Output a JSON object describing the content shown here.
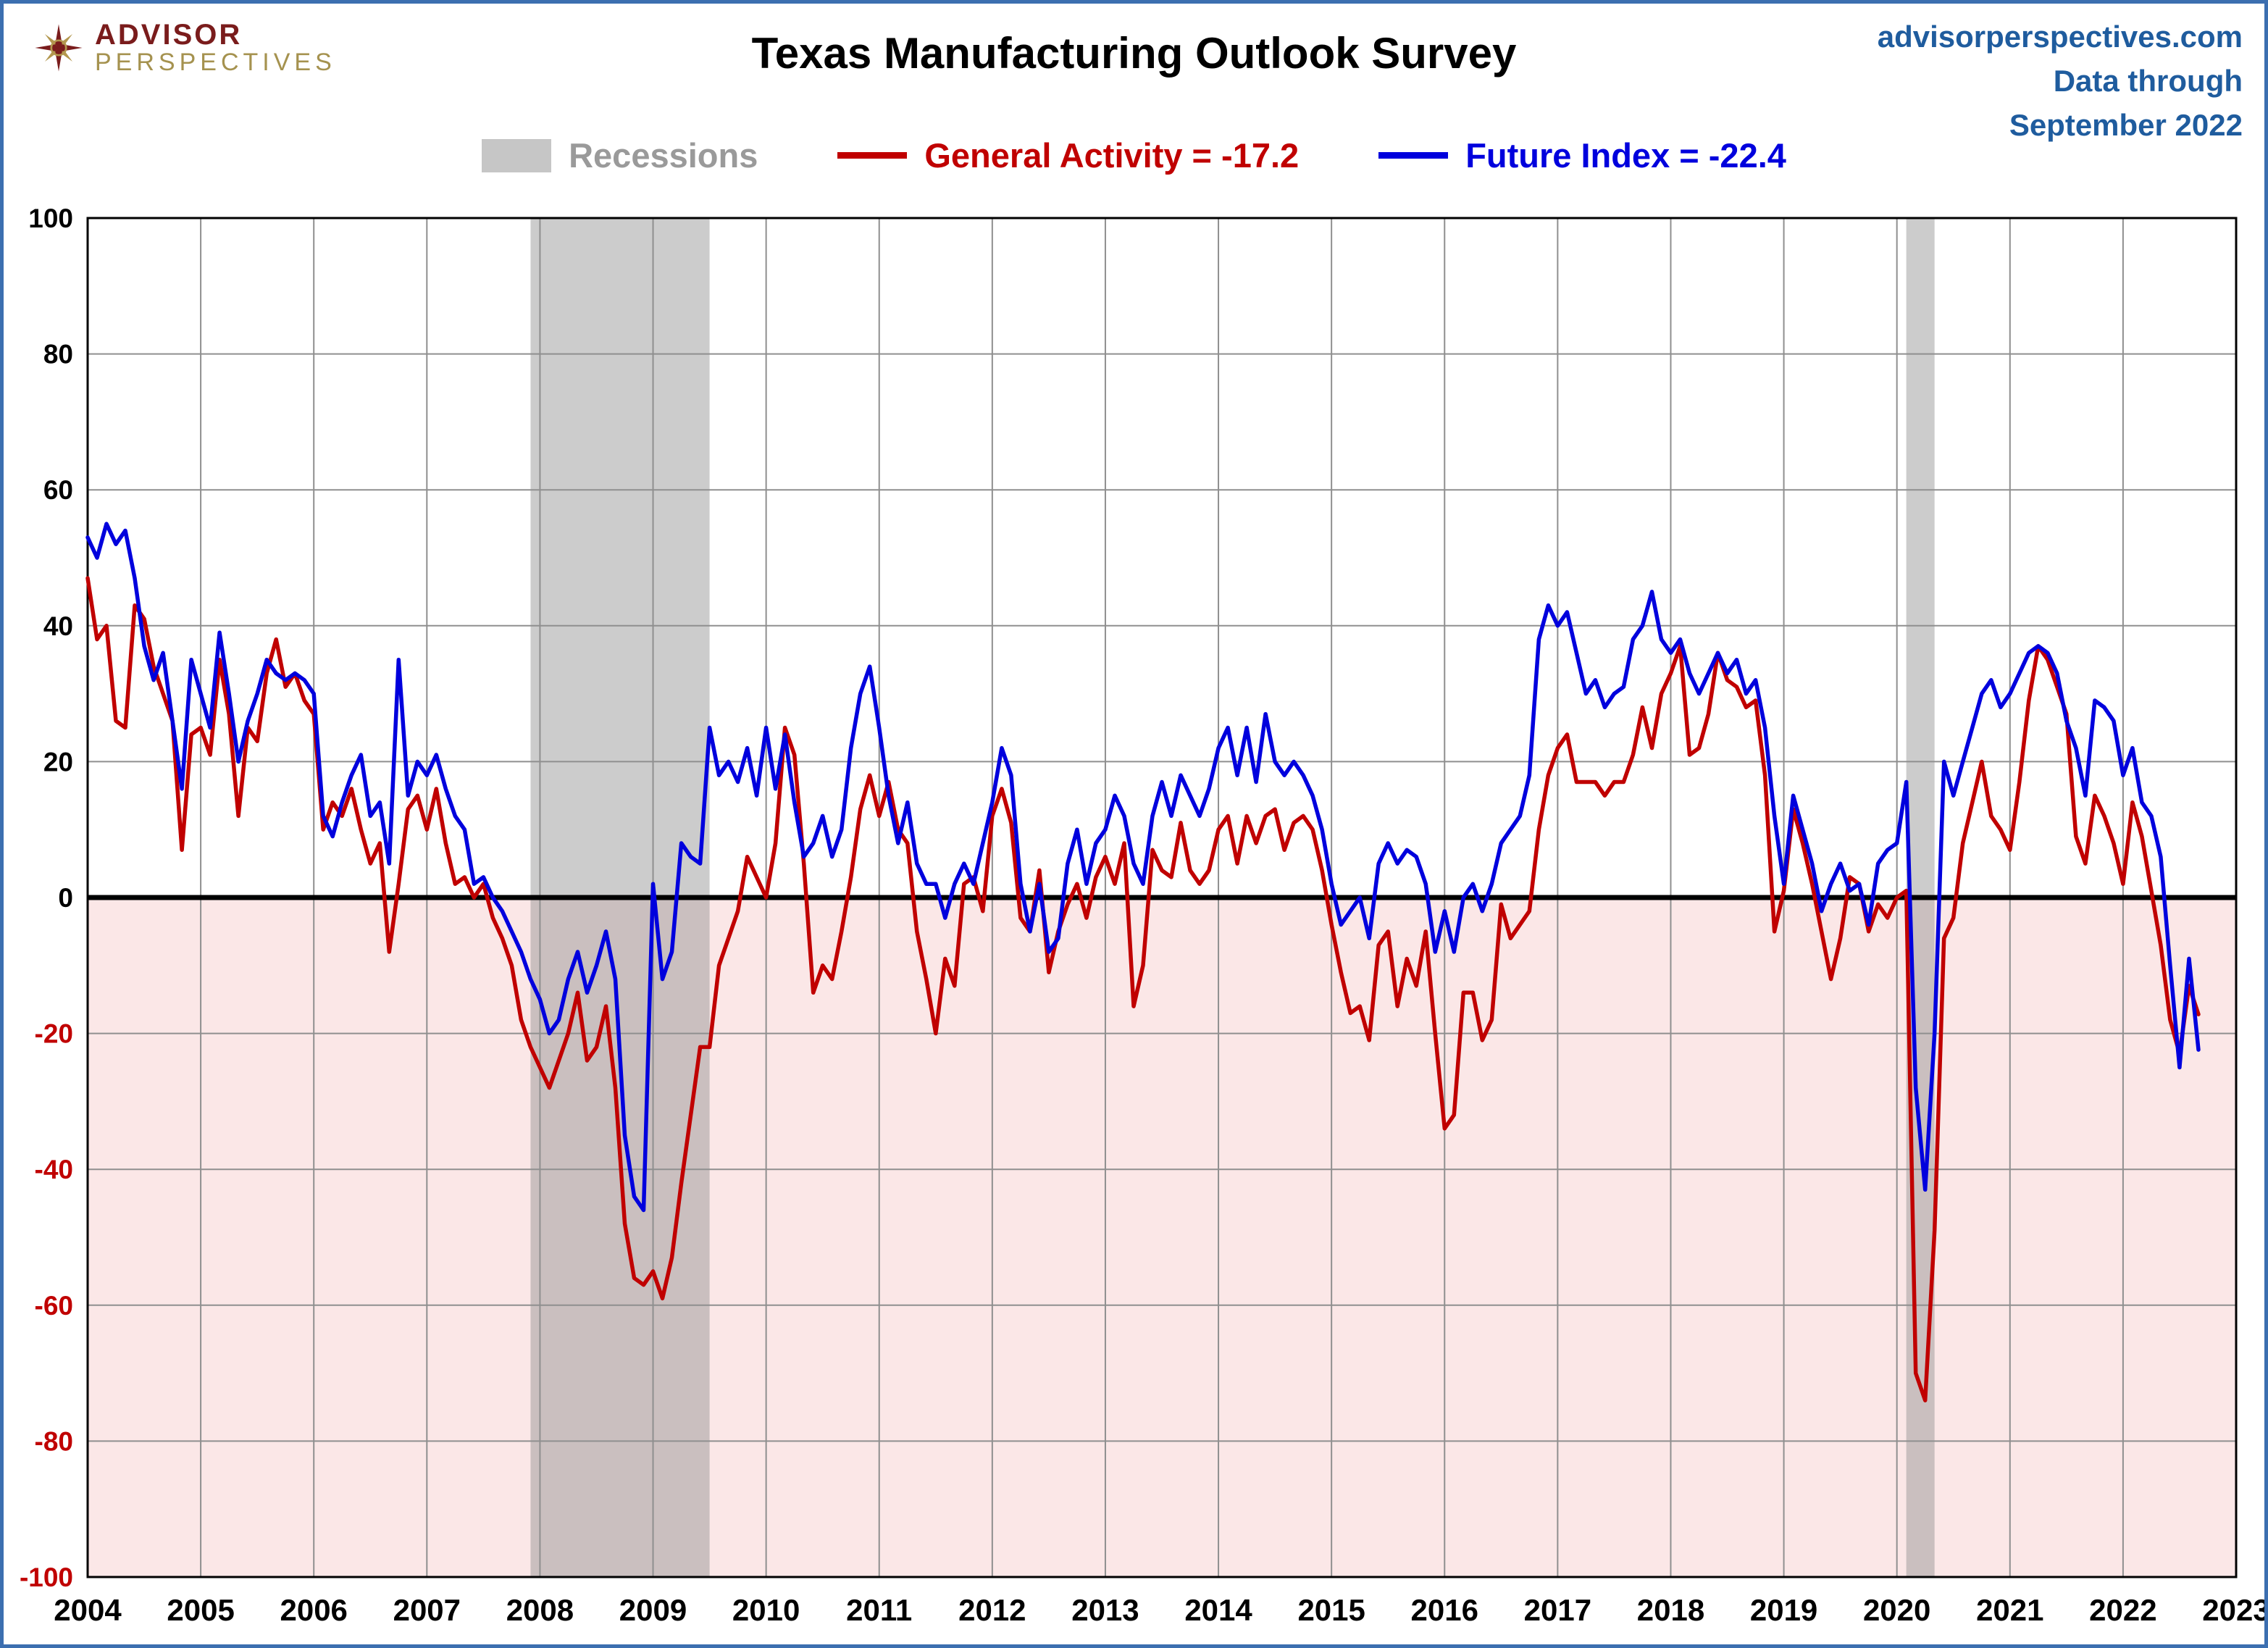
{
  "header": {
    "logo_line1": "ADVISOR",
    "logo_line2": "PERSPECTIVES",
    "title": "Texas Manufacturing Outlook Survey",
    "site": "advisorperspectives.com",
    "data_through_label": "Data through",
    "data_through_date": "September 2022"
  },
  "legend": {
    "recessions_label": "Recessions",
    "general_activity_label": "General Activity = -17.2",
    "future_index_label": "Future Index = -22.4"
  },
  "chart_data": {
    "type": "line",
    "title": "Texas Manufacturing Outlook Survey",
    "frequency": "monthly",
    "x_start": "2004-01",
    "x_end": "2022-09",
    "xlim": [
      2004,
      2023
    ],
    "ylim": [
      -100,
      100
    ],
    "x_ticks": [
      2004,
      2005,
      2006,
      2007,
      2008,
      2009,
      2010,
      2011,
      2012,
      2013,
      2014,
      2015,
      2016,
      2017,
      2018,
      2019,
      2020,
      2021,
      2022,
      2023
    ],
    "y_ticks": [
      100,
      80,
      60,
      40,
      20,
      0,
      -20,
      -40,
      -60,
      -80,
      -100
    ],
    "grid": true,
    "legend_position": "top",
    "recessions": [
      [
        2007.917,
        2009.5
      ],
      [
        2020.083,
        2020.333
      ]
    ],
    "styles": {
      "below_zero_fill": "#fbe7e7",
      "recession_fill": "#8f8f8f",
      "recession_opacity": 0.45,
      "grid_color": "#8f8f8f",
      "zero_line_color": "#000000",
      "negative_tick_color": "#c00000",
      "positive_tick_color": "#000000"
    },
    "series": [
      {
        "name": "General Activity",
        "color": "#c00000",
        "latest": -17.2,
        "values": [
          47,
          38,
          40,
          26,
          25,
          43,
          41,
          34,
          30,
          26,
          7,
          24,
          25,
          21,
          35,
          27,
          12,
          25,
          23,
          33,
          38,
          31,
          33,
          29,
          27,
          10,
          14,
          12,
          16,
          10,
          5,
          8,
          -8,
          2,
          13,
          15,
          10,
          16,
          8,
          2,
          3,
          0,
          2,
          -3,
          -6,
          -10,
          -18,
          -22,
          -25,
          -28,
          -24,
          -20,
          -14,
          -24,
          -22,
          -16,
          -28,
          -48,
          -56,
          -57,
          -55,
          -59,
          -53,
          -42,
          -32,
          -22,
          -22,
          -10,
          -6,
          -2,
          6,
          3,
          0,
          8,
          25,
          21,
          5,
          -14,
          -10,
          -12,
          -5,
          3,
          13,
          18,
          12,
          17,
          10,
          8,
          -5,
          -12,
          -20,
          -9,
          -13,
          2,
          3,
          -2,
          12,
          16,
          11,
          -3,
          -5,
          4,
          -11,
          -5,
          -1,
          2,
          -3,
          3,
          6,
          2,
          8,
          -16,
          -10,
          7,
          4,
          3,
          11,
          4,
          2,
          4,
          10,
          12,
          5,
          12,
          8,
          12,
          13,
          7,
          11,
          12,
          10,
          4,
          -4,
          -11,
          -17,
          -16,
          -21,
          -7,
          -5,
          -16,
          -9,
          -13,
          -5,
          -20,
          -34,
          -32,
          -14,
          -14,
          -21,
          -18,
          -1,
          -6,
          -4,
          -2,
          10,
          18,
          22,
          24,
          17,
          17,
          17,
          15,
          17,
          17,
          21,
          28,
          22,
          30,
          33,
          37,
          21,
          22,
          27,
          36,
          32,
          31,
          28,
          29,
          18,
          -5,
          1,
          13,
          8,
          2,
          -5,
          -12,
          -6,
          3,
          2,
          -5,
          -1,
          -3,
          0,
          1,
          -70,
          -74,
          -49,
          -6,
          -3,
          8,
          14,
          20,
          12,
          10,
          7,
          17,
          29,
          37,
          35,
          31,
          27,
          9,
          5,
          15,
          12,
          8,
          2,
          14,
          9,
          1,
          -7,
          -18,
          -23,
          -13,
          -17.2
        ]
      },
      {
        "name": "Future Index",
        "color": "#0000dd",
        "latest": -22.4,
        "values": [
          53,
          50,
          55,
          52,
          54,
          47,
          37,
          32,
          36,
          26,
          16,
          35,
          30,
          25,
          39,
          30,
          20,
          26,
          30,
          35,
          33,
          32,
          33,
          32,
          30,
          12,
          9,
          14,
          18,
          21,
          12,
          14,
          5,
          35,
          15,
          20,
          18,
          21,
          16,
          12,
          10,
          2,
          3,
          0,
          -2,
          -5,
          -8,
          -12,
          -15,
          -20,
          -18,
          -12,
          -8,
          -14,
          -10,
          -5,
          -12,
          -35,
          -44,
          -46,
          2,
          -12,
          -8,
          8,
          6,
          5,
          25,
          18,
          20,
          17,
          22,
          15,
          25,
          16,
          24,
          14,
          6,
          8,
          12,
          6,
          10,
          22,
          30,
          34,
          25,
          15,
          8,
          14,
          5,
          2,
          2,
          -3,
          2,
          5,
          2,
          8,
          14,
          22,
          18,
          2,
          -5,
          2,
          -8,
          -6,
          5,
          10,
          2,
          8,
          10,
          15,
          12,
          5,
          2,
          12,
          17,
          12,
          18,
          15,
          12,
          16,
          22,
          25,
          18,
          25,
          17,
          27,
          20,
          18,
          20,
          18,
          15,
          10,
          2,
          -4,
          -2,
          0,
          -6,
          5,
          8,
          5,
          7,
          6,
          2,
          -8,
          -2,
          -8,
          0,
          2,
          -2,
          2,
          8,
          10,
          12,
          18,
          38,
          43,
          40,
          42,
          36,
          30,
          32,
          28,
          30,
          31,
          38,
          40,
          45,
          38,
          36,
          38,
          33,
          30,
          33,
          36,
          33,
          35,
          30,
          32,
          25,
          12,
          2,
          15,
          10,
          5,
          -2,
          2,
          5,
          1,
          2,
          -4,
          5,
          7,
          8,
          17,
          -28,
          -43,
          -20,
          20,
          15,
          20,
          25,
          30,
          32,
          28,
          30,
          33,
          36,
          37,
          36,
          33,
          26,
          22,
          15,
          29,
          28,
          26,
          18,
          22,
          14,
          12,
          6,
          -10,
          -25,
          -9,
          -22.4
        ]
      }
    ]
  }
}
